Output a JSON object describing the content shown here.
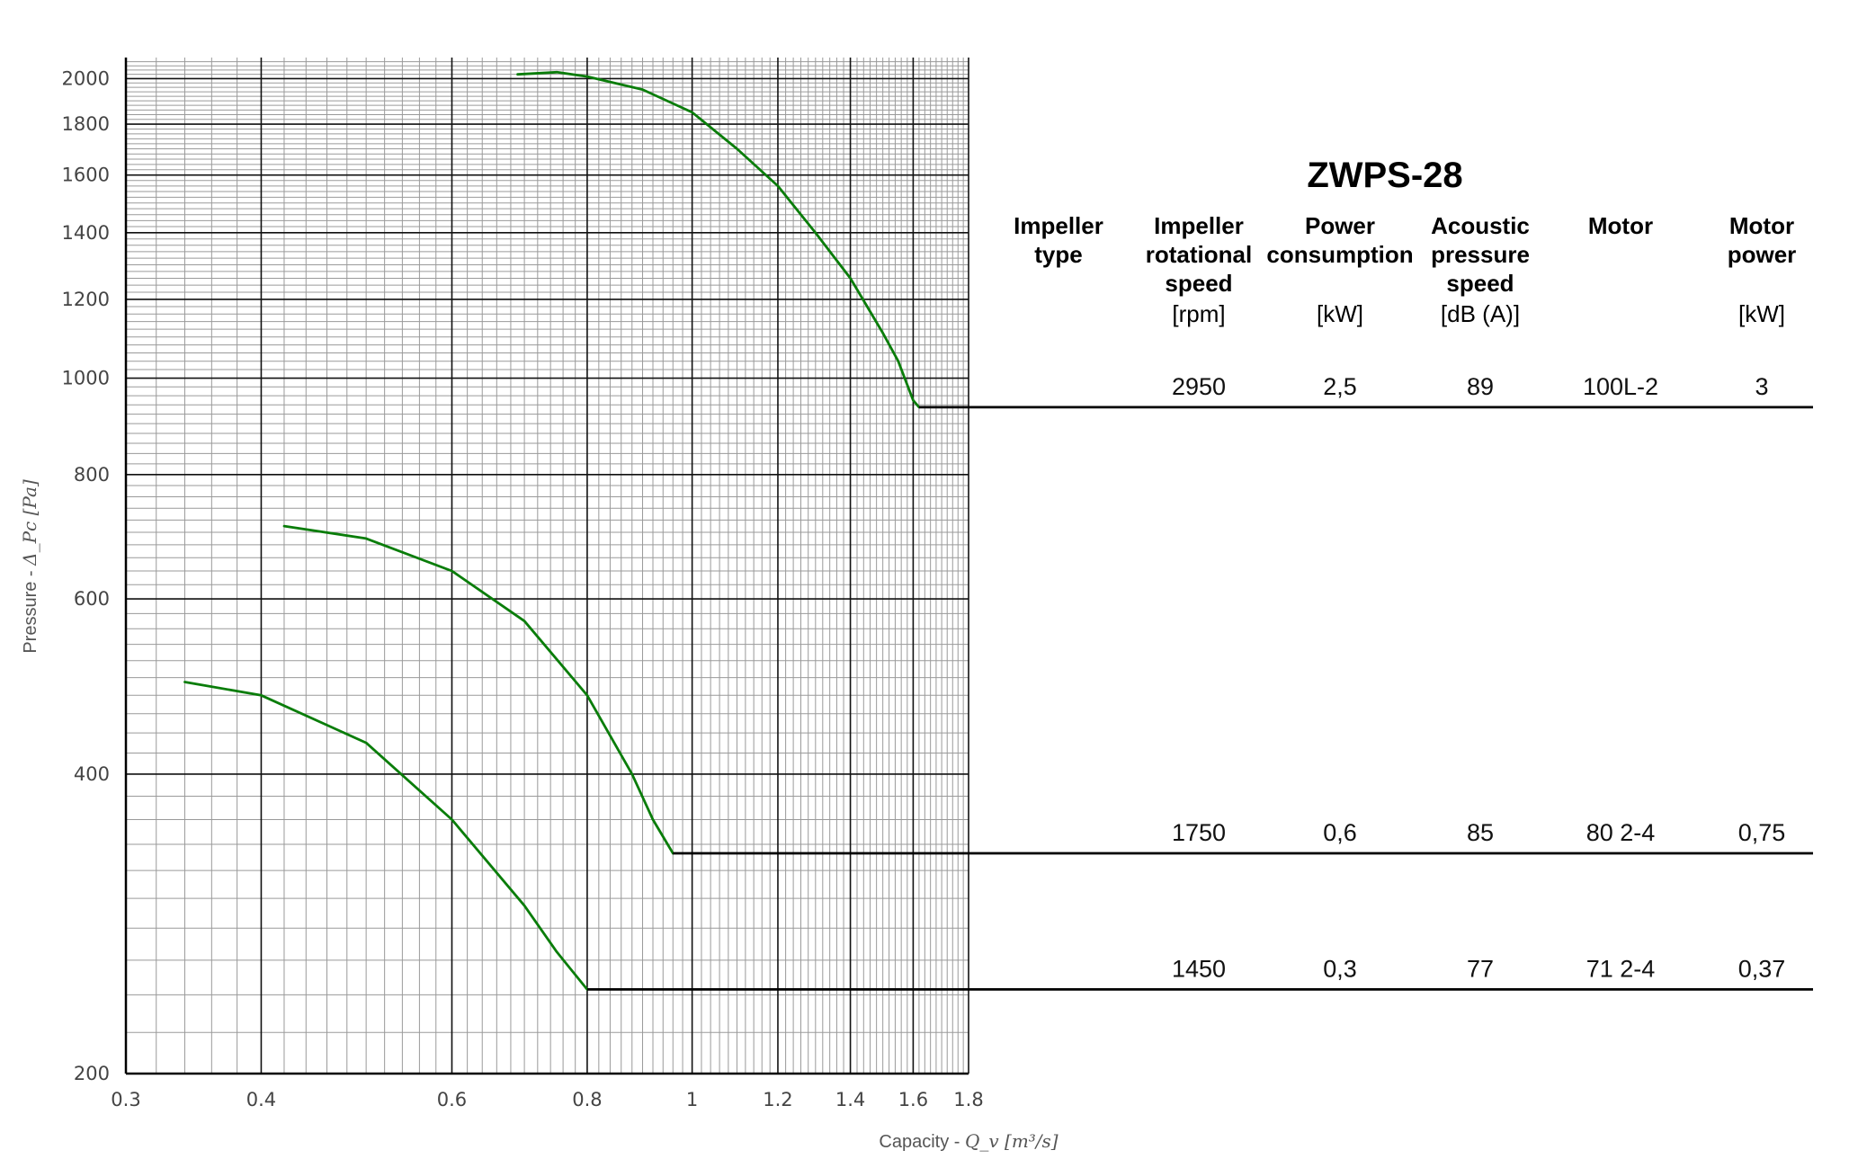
{
  "chart_data": {
    "type": "line",
    "title": "ZWPS-28",
    "xlabel": "Capacity - ",
    "xlabel_unit": "Q_v [m³/s]",
    "ylabel": "Pressure - ",
    "ylabel_unit": "Δ_Pc [Pa]",
    "x_scale": "log",
    "y_scale": "log",
    "xlim": [
      0.3,
      1.8
    ],
    "ylim": [
      200,
      2100
    ],
    "x_ticks": [
      0.3,
      0.4,
      0.6,
      0.8,
      1,
      1.2,
      1.4,
      1.6,
      1.8
    ],
    "x_tick_labels": [
      "0.3",
      "0.4",
      "0.6",
      "0.8",
      "1",
      "1.2",
      "1.4",
      "1.6",
      "1.8"
    ],
    "y_ticks": [
      200,
      400,
      600,
      800,
      1000,
      1200,
      1400,
      1600,
      1800,
      2000
    ],
    "y_tick_labels": [
      "200",
      "400",
      "600",
      "800",
      "1000",
      "1200",
      "1400",
      "1600",
      "1800",
      "2000"
    ],
    "grid": true,
    "line_color": "#0a7d0a",
    "series": [
      {
        "speed": "2950",
        "points": [
          [
            0.69,
            2020
          ],
          [
            0.75,
            2030
          ],
          [
            0.8,
            2010
          ],
          [
            0.9,
            1950
          ],
          [
            1.0,
            1850
          ],
          [
            1.1,
            1700
          ],
          [
            1.2,
            1560
          ],
          [
            1.3,
            1400
          ],
          [
            1.4,
            1260
          ],
          [
            1.5,
            1110
          ],
          [
            1.55,
            1040
          ],
          [
            1.6,
            950
          ],
          [
            1.62,
            935
          ]
        ]
      },
      {
        "speed": "1750",
        "points": [
          [
            0.42,
            710
          ],
          [
            0.5,
            690
          ],
          [
            0.6,
            640
          ],
          [
            0.7,
            570
          ],
          [
            0.8,
            480
          ],
          [
            0.88,
            400
          ],
          [
            0.92,
            360
          ],
          [
            0.96,
            333
          ]
        ]
      },
      {
        "speed": "1450",
        "points": [
          [
            0.34,
            495
          ],
          [
            0.4,
            480
          ],
          [
            0.5,
            430
          ],
          [
            0.6,
            360
          ],
          [
            0.7,
            295
          ],
          [
            0.75,
            265
          ],
          [
            0.8,
            243
          ]
        ]
      }
    ]
  },
  "table": {
    "title": "ZWPS-28",
    "columns": [
      {
        "head": [
          "Impeller",
          "type"
        ],
        "unit": ""
      },
      {
        "head": [
          "Impeller",
          "rotational",
          "speed"
        ],
        "unit": "[rpm]"
      },
      {
        "head": [
          "Power",
          "consumption"
        ],
        "unit": "[kW]"
      },
      {
        "head": [
          "Acoustic",
          "pressure",
          "speed"
        ],
        "unit": "[dB (A)]"
      },
      {
        "head": [
          "Motor"
        ],
        "unit": ""
      },
      {
        "head": [
          "Motor",
          "power"
        ],
        "unit": "[kW]"
      }
    ],
    "rows": [
      {
        "speed": "2950",
        "power": "2,5",
        "noise": "89",
        "motor": "100L-2",
        "motor_power": "3"
      },
      {
        "speed": "1750",
        "power": "0,6",
        "noise": "85",
        "motor": "80 2-4",
        "motor_power": "0,75"
      },
      {
        "speed": "1450",
        "power": "0,3",
        "noise": "77",
        "motor": "71 2-4",
        "motor_power": "0,37"
      }
    ]
  }
}
